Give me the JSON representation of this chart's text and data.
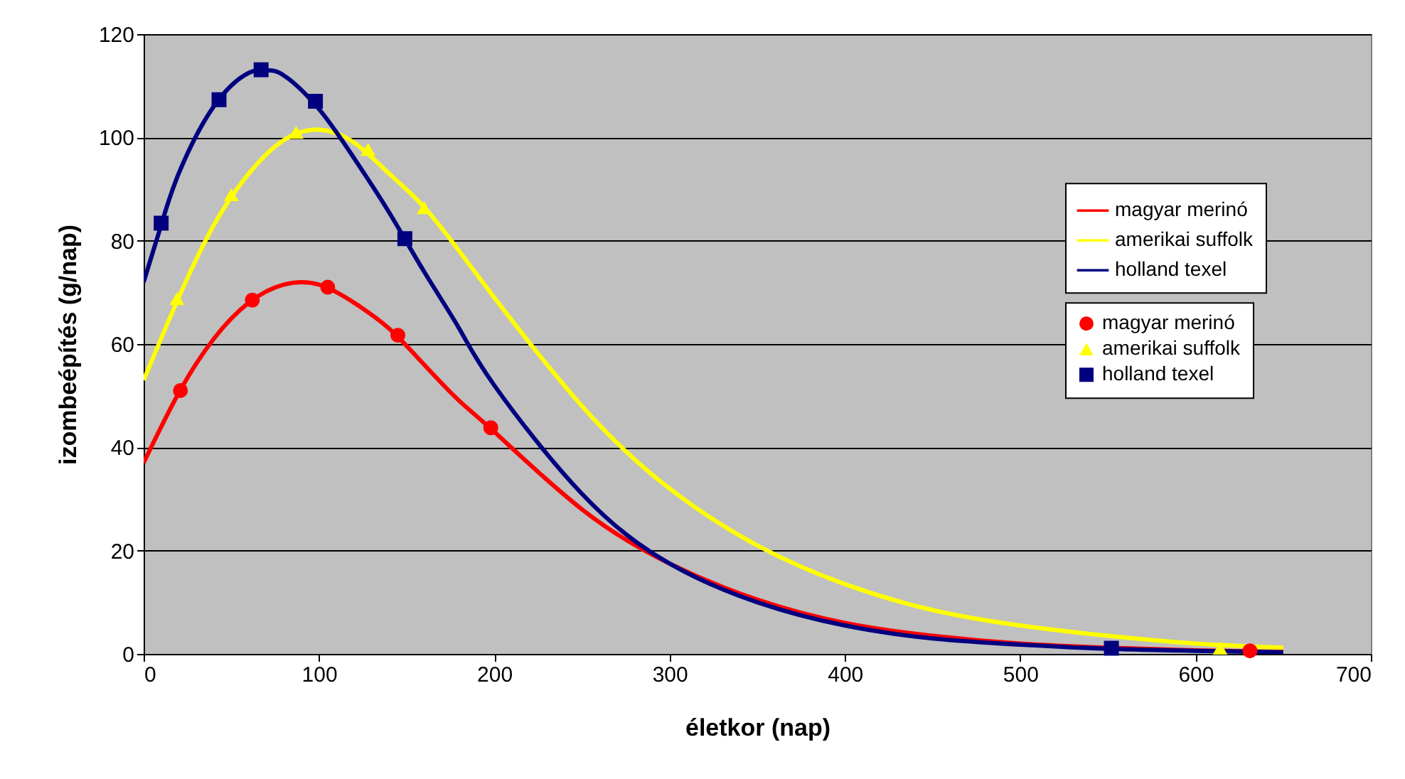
{
  "chart_data": {
    "type": "line",
    "xlabel": "életkor (nap)",
    "ylabel": "izombeépítés (g/nap)",
    "xlim": [
      0,
      700
    ],
    "xticks": [
      0,
      100,
      200,
      300,
      400,
      500,
      600,
      700
    ],
    "ylim": [
      0,
      120
    ],
    "yticks": [
      0,
      20,
      40,
      60,
      80,
      100,
      120
    ],
    "grid": "y",
    "legend": "right",
    "series": [
      {
        "name": "magyar merinó",
        "type": "line",
        "color": "#ff0000",
        "x": [
          0,
          20,
          40,
          60,
          80,
          100,
          120,
          140,
          160,
          180,
          200,
          250,
          300,
          350,
          400,
          450,
          500,
          550,
          600,
          650
        ],
        "values": [
          37,
          50.5,
          61,
          68,
          71.5,
          71.5,
          68,
          63,
          56,
          49,
          43,
          28,
          17.5,
          10.5,
          6,
          3.5,
          2,
          1.2,
          0.7,
          0.4
        ]
      },
      {
        "name": "amerikai suffolk",
        "type": "line",
        "color": "#ffff00",
        "x": [
          0,
          20,
          40,
          60,
          80,
          100,
          120,
          140,
          160,
          180,
          200,
          250,
          300,
          350,
          400,
          450,
          500,
          550,
          600,
          650
        ],
        "values": [
          53,
          69,
          83,
          93,
          99.5,
          101.5,
          99,
          93,
          86.5,
          78,
          69,
          48,
          32,
          21,
          13.5,
          8.5,
          5.5,
          3.5,
          2,
          1.2
        ]
      },
      {
        "name": "holland texel",
        "type": "line",
        "color": "#000080",
        "x": [
          0,
          10,
          20,
          40,
          60,
          70,
          80,
          100,
          120,
          140,
          160,
          180,
          200,
          250,
          300,
          350,
          400,
          450,
          500,
          550,
          600,
          650
        ],
        "values": [
          72,
          83,
          93,
          106,
          112.5,
          113,
          112,
          105.5,
          96,
          85.5,
          74,
          63,
          52,
          31,
          17.5,
          10,
          5.5,
          3,
          1.8,
          1,
          0.6,
          0.3
        ]
      },
      {
        "name": "magyar merinó",
        "type": "scatter",
        "marker": "circle",
        "color": "#ff0000",
        "x": [
          21,
          62,
          105,
          145,
          198,
          631
        ],
        "values": [
          51,
          68.5,
          71,
          61.7,
          43.8,
          0.6
        ]
      },
      {
        "name": "amerikai suffolk",
        "type": "scatter",
        "marker": "triangle",
        "color": "#ffff00",
        "x": [
          19,
          50,
          87,
          128,
          160,
          614
        ],
        "values": [
          68.8,
          88.9,
          101,
          97.7,
          86.4,
          1.1
        ]
      },
      {
        "name": "holland texel",
        "type": "scatter",
        "marker": "square",
        "color": "#000080",
        "x": [
          10,
          43,
          67,
          98,
          149,
          552
        ],
        "values": [
          83.4,
          107.3,
          113.1,
          107,
          80.4,
          1.1
        ]
      }
    ]
  }
}
